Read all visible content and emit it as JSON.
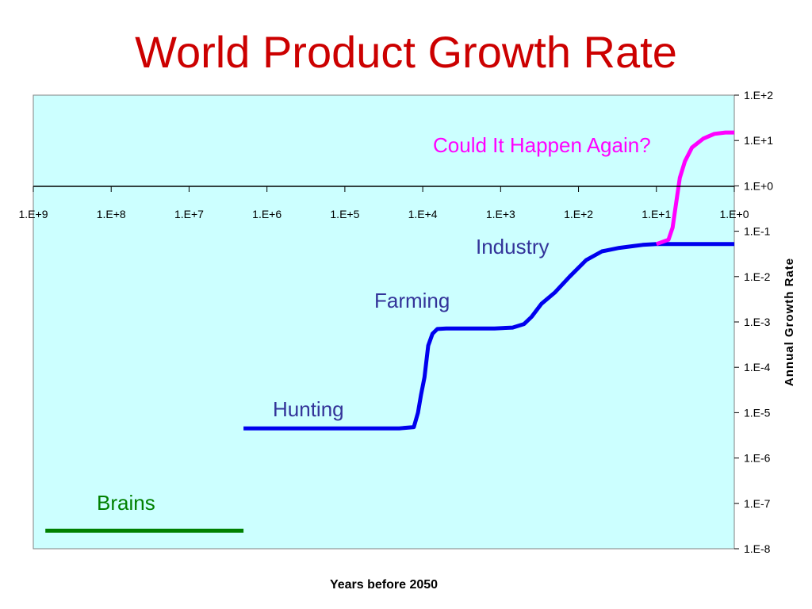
{
  "title": "World Product Growth Rate",
  "chart_data": {
    "type": "line",
    "xlabel": "Years before 2050",
    "ylabel": "Annual Growth Rate",
    "x_scale": "log-reversed",
    "y_scale": "log",
    "xlim": [
      1000000000,
      1
    ],
    "ylim": [
      1e-08,
      100
    ],
    "grid": false,
    "background_color": "#ccffff",
    "x_ticks": [
      {
        "value": 1000000000,
        "label": "1.E+9"
      },
      {
        "value": 100000000,
        "label": "1.E+8"
      },
      {
        "value": 10000000,
        "label": "1.E+7"
      },
      {
        "value": 1000000,
        "label": "1.E+6"
      },
      {
        "value": 100000,
        "label": "1.E+5"
      },
      {
        "value": 10000,
        "label": "1.E+4"
      },
      {
        "value": 1000,
        "label": "1.E+3"
      },
      {
        "value": 100,
        "label": "1.E+2"
      },
      {
        "value": 10,
        "label": "1.E+1"
      },
      {
        "value": 1,
        "label": "1.E+0"
      }
    ],
    "y_ticks": [
      {
        "value": 100,
        "label": "1.E+2"
      },
      {
        "value": 10,
        "label": "1.E+1"
      },
      {
        "value": 1,
        "label": "1.E+0"
      },
      {
        "value": 0.1,
        "label": "1.E-1"
      },
      {
        "value": 0.01,
        "label": "1.E-2"
      },
      {
        "value": 0.001,
        "label": "1.E-3"
      },
      {
        "value": 0.0001,
        "label": "1.E-4"
      },
      {
        "value": 1e-05,
        "label": "1.E-5"
      },
      {
        "value": 1e-06,
        "label": "1.E-6"
      },
      {
        "value": 1e-07,
        "label": "1.E-7"
      },
      {
        "value": 1e-08,
        "label": "1.E-8"
      }
    ],
    "series": [
      {
        "name": "Brains",
        "color": "#008000",
        "points": [
          [
            700000000,
            2.5e-08
          ],
          [
            2000000,
            2.5e-08
          ]
        ]
      },
      {
        "name": "Hunting",
        "color": "#0000ee",
        "points": [
          [
            2000000,
            4.5e-06
          ],
          [
            50000,
            4.5e-06
          ],
          [
            20000,
            4.5e-06
          ],
          [
            13000,
            4.8e-06
          ],
          [
            11500,
            1e-05
          ],
          [
            10500,
            2.5e-05
          ],
          [
            9500,
            6e-05
          ],
          [
            8500,
            0.0003
          ],
          [
            7500,
            0.00055
          ],
          [
            6500,
            0.0007
          ],
          [
            5000,
            0.00072
          ],
          [
            2000,
            0.00072
          ],
          [
            1200,
            0.00072
          ],
          [
            700,
            0.00075
          ],
          [
            500,
            0.0009
          ],
          [
            400,
            0.0013
          ],
          [
            300,
            0.0025
          ],
          [
            200,
            0.0045
          ],
          [
            130,
            0.01
          ],
          [
            80,
            0.023
          ],
          [
            50,
            0.036
          ],
          [
            30,
            0.043
          ],
          [
            20,
            0.047
          ],
          [
            15,
            0.05
          ],
          [
            10,
            0.052
          ],
          [
            1,
            0.052
          ]
        ]
      },
      {
        "name": "Could It Happen Again?",
        "color": "#ff00ff",
        "points": [
          [
            10,
            0.052
          ],
          [
            7,
            0.065
          ],
          [
            6.2,
            0.12
          ],
          [
            5.6,
            0.4
          ],
          [
            5,
            1.5
          ],
          [
            4.3,
            3.5
          ],
          [
            3.5,
            7
          ],
          [
            2.5,
            11
          ],
          [
            1.8,
            14
          ],
          [
            1.3,
            15
          ],
          [
            1,
            15
          ]
        ]
      }
    ],
    "annotations": [
      {
        "text": "Brains",
        "color": "#008000"
      },
      {
        "text": "Hunting",
        "color": "#333399"
      },
      {
        "text": "Farming",
        "color": "#333399"
      },
      {
        "text": "Industry",
        "color": "#333399"
      },
      {
        "text": "Could It Happen Again?",
        "color": "#ff00ff"
      }
    ]
  }
}
